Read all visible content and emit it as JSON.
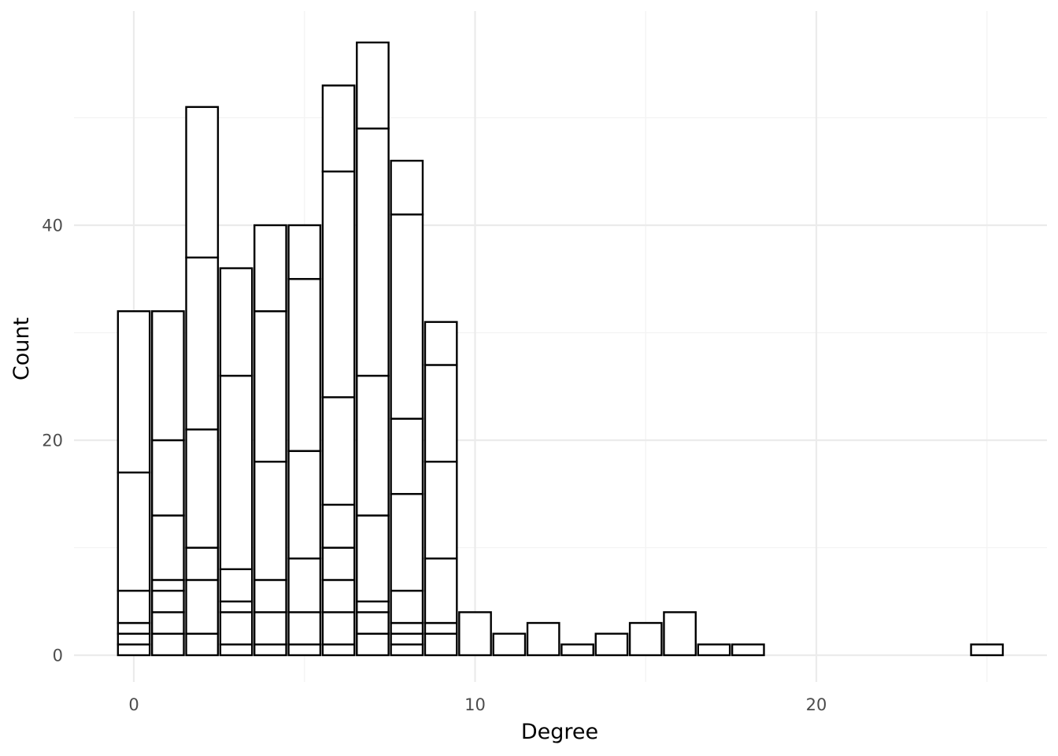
{
  "chart_data": {
    "type": "bar",
    "subtype": "stacked-histogram",
    "title": "",
    "xlabel": "Degree",
    "ylabel": "Count",
    "xlim": [
      -1.5,
      26.3
    ],
    "ylim": [
      -2.5,
      60
    ],
    "x_ticks": [
      0,
      10,
      20
    ],
    "x_tick_labels": [
      "0",
      "10",
      "20"
    ],
    "y_ticks": [
      0,
      20,
      40
    ],
    "y_tick_labels": [
      "0",
      "20",
      "40"
    ],
    "grid": true,
    "legend": "none",
    "bin_width": 1,
    "bars": [
      {
        "x": 0,
        "boundaries": [
          1,
          2,
          3,
          6,
          17,
          32
        ]
      },
      {
        "x": 1,
        "boundaries": [
          2,
          4,
          6,
          7,
          13,
          20,
          32
        ]
      },
      {
        "x": 2,
        "boundaries": [
          2,
          7,
          10,
          21,
          37,
          51
        ]
      },
      {
        "x": 3,
        "boundaries": [
          1,
          4,
          5,
          8,
          26,
          36
        ]
      },
      {
        "x": 4,
        "boundaries": [
          1,
          4,
          7,
          18,
          32,
          40
        ]
      },
      {
        "x": 5,
        "boundaries": [
          1,
          4,
          9,
          19,
          35,
          40
        ]
      },
      {
        "x": 6,
        "boundaries": [
          1,
          4,
          7,
          10,
          14,
          24,
          45,
          53
        ]
      },
      {
        "x": 7,
        "boundaries": [
          2,
          4,
          5,
          13,
          26,
          49,
          57
        ]
      },
      {
        "x": 8,
        "boundaries": [
          1,
          2,
          3,
          6,
          15,
          22,
          41,
          46
        ]
      },
      {
        "x": 9,
        "boundaries": [
          2,
          3,
          9,
          18,
          27,
          31
        ]
      },
      {
        "x": 10,
        "boundaries": [
          4
        ]
      },
      {
        "x": 11,
        "boundaries": [
          2
        ]
      },
      {
        "x": 12,
        "boundaries": [
          3
        ]
      },
      {
        "x": 13,
        "boundaries": [
          1
        ]
      },
      {
        "x": 14,
        "boundaries": [
          2
        ]
      },
      {
        "x": 15,
        "boundaries": [
          3
        ]
      },
      {
        "x": 16,
        "boundaries": [
          4
        ]
      },
      {
        "x": 17,
        "boundaries": [
          1
        ]
      },
      {
        "x": 18,
        "boundaries": [
          1
        ]
      },
      {
        "x": 25,
        "boundaries": [
          1
        ]
      }
    ]
  }
}
